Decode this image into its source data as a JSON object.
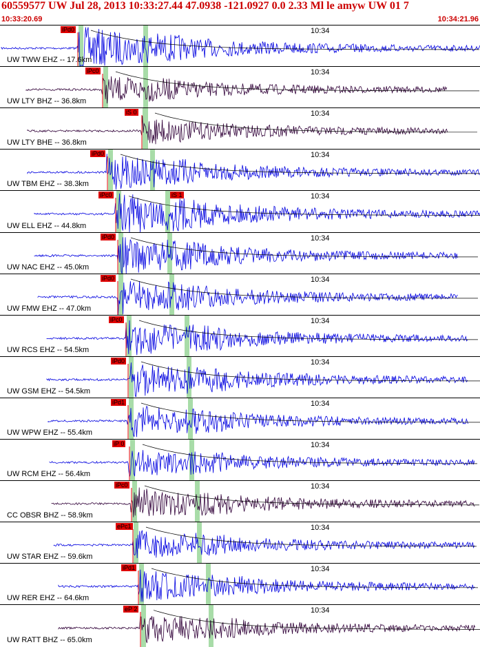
{
  "header": {
    "title": "60559577 UW Jul 28, 2013 10:33:27.44   47.0938 -121.0927  0.0 2.33 Ml le amyw UW 01    7",
    "time_left": "10:33:20.69",
    "time_right": "10:34:21.96"
  },
  "tick_label": "10:34",
  "colors": {
    "waveform_blue": "#0000e0",
    "waveform_dark": "#300038",
    "pick_red": "#e00000",
    "s_band": "#a8dca8",
    "label_red": "#cc0000"
  },
  "traces": [
    {
      "label": "UW TWW EHZ -- 17.6km",
      "pick": "iPd0",
      "pick2": ""
    },
    {
      "label": "UW LTY BHZ -- 36.8km",
      "pick": "iPc0",
      "pick2": ""
    },
    {
      "label": "UW LTY BHE -- 36.8km",
      "pick": "iS 0",
      "pick2": ""
    },
    {
      "label": "UW TBM EHZ -- 38.3km",
      "pick": "iPd0",
      "pick2": ""
    },
    {
      "label": "UW ELL EHZ -- 44.8km",
      "pick": "iPc0",
      "pick2": "iS 1"
    },
    {
      "label": "UW NAC EHZ -- 45.0km",
      "pick": "iPd0",
      "pick2": ""
    },
    {
      "label": "UW FMW EHZ -- 47.0km",
      "pick": "iPd0",
      "pick2": ""
    },
    {
      "label": "UW RCS EHZ -- 54.5km",
      "pick": "iPc0",
      "pick2": ""
    },
    {
      "label": "UW GSM EHZ -- 54.5km",
      "pick": "iPd0",
      "pick2": ""
    },
    {
      "label": "UW WPW EHZ -- 55.4km",
      "pick": "iPd1",
      "pick2": ""
    },
    {
      "label": "UW RCM EHZ -- 56.4km",
      "pick": "iP 0",
      "pick2": ""
    },
    {
      "label": "CC OBSR BHZ -- 58.9km",
      "pick": "iPc0",
      "pick2": ""
    },
    {
      "label": "UW STAR EHZ -- 59.6km",
      "pick": "ePc1",
      "pick2": ""
    },
    {
      "label": "UW RER EHZ -- 64.6km",
      "pick": "iPd1",
      "pick2": ""
    },
    {
      "label": "UW RATT BHZ -- 65.0km",
      "pick": "eP 2",
      "pick2": ""
    }
  ]
}
